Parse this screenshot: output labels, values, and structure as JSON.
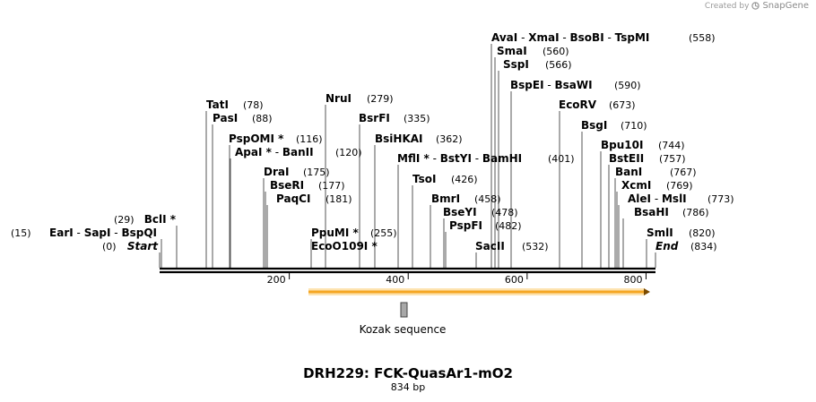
{
  "credit": {
    "prefix": "Created by",
    "brand": "SnapGene",
    "logo_icon": "snapgene-logo-icon"
  },
  "plasmid": {
    "name": "DRH229: FCK-QuasAr1-mO2",
    "length_label": "834 bp",
    "length": 834
  },
  "ruler": {
    "ticks": [
      {
        "value": 200,
        "label": "200"
      },
      {
        "value": 400,
        "label": "400"
      },
      {
        "value": 600,
        "label": "600"
      },
      {
        "value": 800,
        "label": "800"
      }
    ]
  },
  "features": [
    {
      "name": "orf-arrow",
      "start": 250,
      "end": 834,
      "color": "#f5a623",
      "label": ""
    },
    {
      "name": "kozak",
      "start": 404,
      "end": 414,
      "color": "#a8a8a8",
      "label": "Kozak sequence"
    }
  ],
  "sites": [
    {
      "names": [
        "AvaI",
        "XmaI",
        "BsoBI",
        "TspMI"
      ],
      "pos": 558,
      "pos_label": "(558)",
      "star": []
    },
    {
      "names": [
        "SmaI"
      ],
      "pos": 560,
      "pos_label": "(560)",
      "star": []
    },
    {
      "names": [
        "SspI"
      ],
      "pos": 566,
      "pos_label": "(566)",
      "star": []
    },
    {
      "names": [
        "BspEI",
        "BsaWI"
      ],
      "pos": 590,
      "pos_label": "(590)",
      "star": []
    },
    {
      "names": [
        "EcoRV"
      ],
      "pos": 673,
      "pos_label": "(673)",
      "star": []
    },
    {
      "names": [
        "BsgI"
      ],
      "pos": 710,
      "pos_label": "(710)",
      "star": []
    },
    {
      "names": [
        "Bpu10I"
      ],
      "pos": 744,
      "pos_label": "(744)",
      "star": []
    },
    {
      "names": [
        "BstEII"
      ],
      "pos": 757,
      "pos_label": "(757)",
      "star": []
    },
    {
      "names": [
        "BanI"
      ],
      "pos": 767,
      "pos_label": "(767)",
      "star": []
    },
    {
      "names": [
        "XcmI"
      ],
      "pos": 769,
      "pos_label": "(769)",
      "star": []
    },
    {
      "names": [
        "AleI",
        "MslI"
      ],
      "pos": 773,
      "pos_label": "(773)",
      "star": []
    },
    {
      "names": [
        "BsaHI"
      ],
      "pos": 786,
      "pos_label": "(786)",
      "star": []
    },
    {
      "names": [
        "SmlI"
      ],
      "pos": 820,
      "pos_label": "(820)",
      "star": []
    },
    {
      "names": [
        "End"
      ],
      "pos": 834,
      "pos_label": "(834)",
      "star": [],
      "italic": true
    },
    {
      "names": [
        "NruI"
      ],
      "pos": 279,
      "pos_label": "(279)",
      "star": []
    },
    {
      "names": [
        "BsrFI"
      ],
      "pos": 335,
      "pos_label": "(335)",
      "star": []
    },
    {
      "names": [
        "BsiHKAI"
      ],
      "pos": 362,
      "pos_label": "(362)",
      "star": []
    },
    {
      "names": [
        "MflI",
        "BstYI",
        "BamHI"
      ],
      "pos": 401,
      "pos_label": "(401)",
      "star": [
        0
      ]
    },
    {
      "names": [
        "TsoI"
      ],
      "pos": 426,
      "pos_label": "(426)",
      "star": []
    },
    {
      "names": [
        "BmrI"
      ],
      "pos": 458,
      "pos_label": "(458)",
      "star": []
    },
    {
      "names": [
        "BseYI"
      ],
      "pos": 478,
      "pos_label": "(478)",
      "star": []
    },
    {
      "names": [
        "PspFI"
      ],
      "pos": 482,
      "pos_label": "(482)",
      "star": []
    },
    {
      "names": [
        "SacII"
      ],
      "pos": 532,
      "pos_label": "(532)",
      "star": []
    },
    {
      "names": [
        "PpuMI"
      ],
      "pos": 255,
      "pos_label": "(255)",
      "star": [
        0
      ]
    },
    {
      "names": [
        "EcoO109I"
      ],
      "pos": 255,
      "pos_label": "",
      "star": [
        0
      ]
    },
    {
      "names": [
        "TatI"
      ],
      "pos": 78,
      "pos_label": "(78)",
      "star": []
    },
    {
      "names": [
        "PasI"
      ],
      "pos": 88,
      "pos_label": "(88)",
      "star": []
    },
    {
      "names": [
        "PspOMI"
      ],
      "pos": 116,
      "pos_label": "(116)",
      "star": [
        0
      ]
    },
    {
      "names": [
        "ApaI",
        "BanII"
      ],
      "pos": 120,
      "pos_label": "(120)",
      "star": [
        0
      ]
    },
    {
      "names": [
        "DraI"
      ],
      "pos": 175,
      "pos_label": "(175)",
      "star": []
    },
    {
      "names": [
        "BseRI"
      ],
      "pos": 177,
      "pos_label": "(177)",
      "star": []
    },
    {
      "names": [
        "PaqCI"
      ],
      "pos": 181,
      "pos_label": "(181)",
      "star": []
    },
    {
      "names": [
        "BclI"
      ],
      "pos": 29,
      "pos_label": "(29)",
      "star": [
        0
      ]
    },
    {
      "names": [
        "EarI",
        "SapI",
        "BspQI"
      ],
      "pos": 15,
      "pos_label": "(15)",
      "star": []
    },
    {
      "names": [
        "Start"
      ],
      "pos": 0,
      "pos_label": "(0)",
      "star": [],
      "italic": true
    }
  ]
}
